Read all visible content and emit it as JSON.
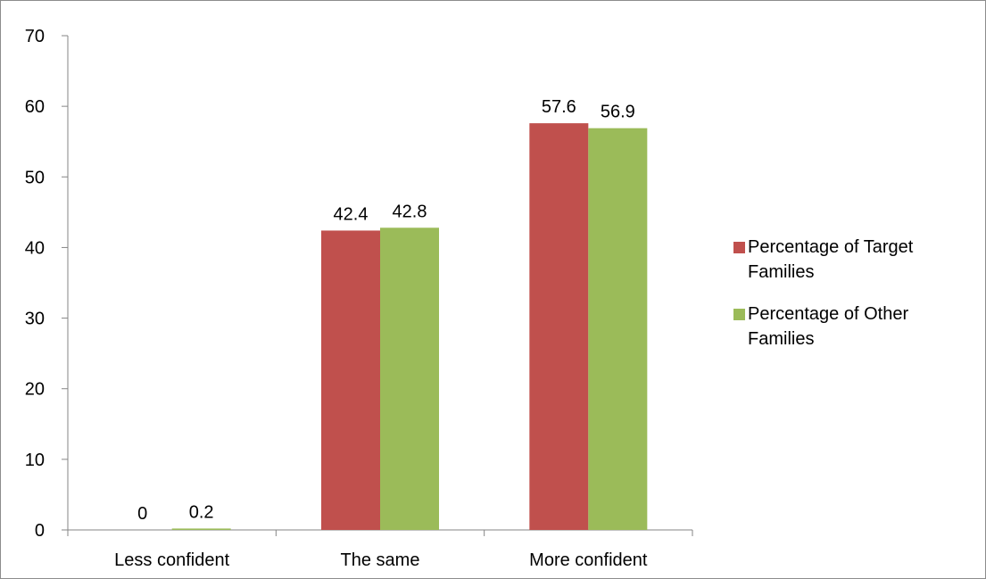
{
  "colors": {
    "series_1": "#c0504d",
    "series_2": "#9bbb59",
    "axis": "#868686"
  },
  "chart_data": {
    "type": "bar",
    "title": "",
    "xlabel": "",
    "ylabel": "",
    "categories": [
      "Less confident",
      "The same",
      "More confident"
    ],
    "series": [
      {
        "name": "Percentage of Target Families",
        "values": [
          0,
          42.4,
          57.6
        ],
        "labels": [
          "0",
          "42.4",
          "57.6"
        ]
      },
      {
        "name": "Percentage of Other Families",
        "values": [
          0.2,
          42.8,
          56.9
        ],
        "labels": [
          "0.2",
          "42.8",
          "56.9"
        ]
      }
    ],
    "ylim": [
      0,
      70
    ],
    "yticks": [
      0,
      10,
      20,
      30,
      40,
      50,
      60,
      70
    ],
    "ytick_labels": [
      "0",
      "10",
      "20",
      "30",
      "40",
      "50",
      "60",
      "70"
    ],
    "grid": false,
    "legend_position": "right",
    "legend": [
      {
        "lines": [
          "Percentage of Target",
          "Families"
        ]
      },
      {
        "lines": [
          "Percentage of Other",
          "Families"
        ]
      }
    ]
  }
}
